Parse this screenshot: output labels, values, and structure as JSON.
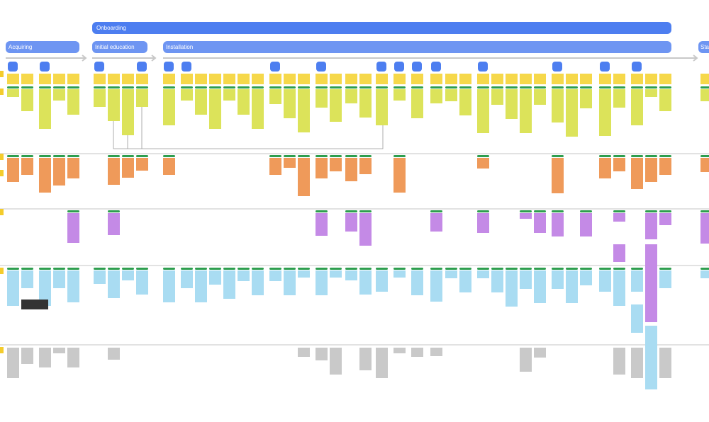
{
  "header": {
    "title": "Onboarding"
  },
  "phases": [
    {
      "label": "Acquiring"
    },
    {
      "label": "Initial education"
    },
    {
      "label": "Installation"
    },
    {
      "label": "Sta"
    }
  ]
}
